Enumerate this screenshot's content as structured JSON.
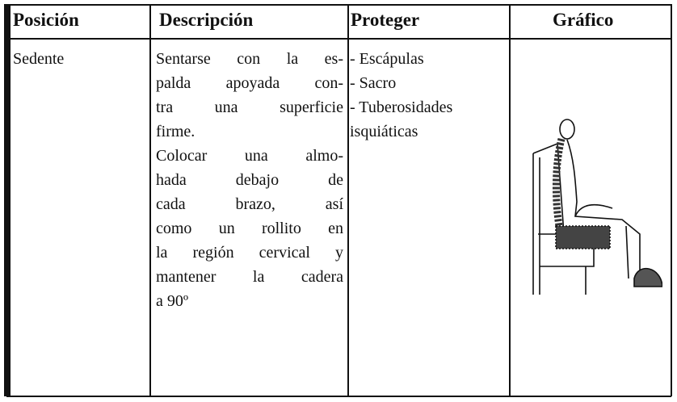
{
  "table": {
    "headers": [
      "Posición",
      "Descripción",
      "Proteger",
      "Gráfico"
    ],
    "rows": [
      {
        "position": "Sedente",
        "description": [
          "Sentarse con la es-",
          "palda apoyada con-",
          "tra una superficie",
          "firme.",
          "Colocar una almo-",
          "hada debajo de",
          "cada brazo, así",
          "como un rollito en",
          "la región cervical y",
          "mantener la cadera",
          "a 90º"
        ],
        "protect": [
          "- Escápulas",
          "- Sacro",
          "- Tuberosidades",
          "isquiáticas"
        ]
      }
    ]
  }
}
